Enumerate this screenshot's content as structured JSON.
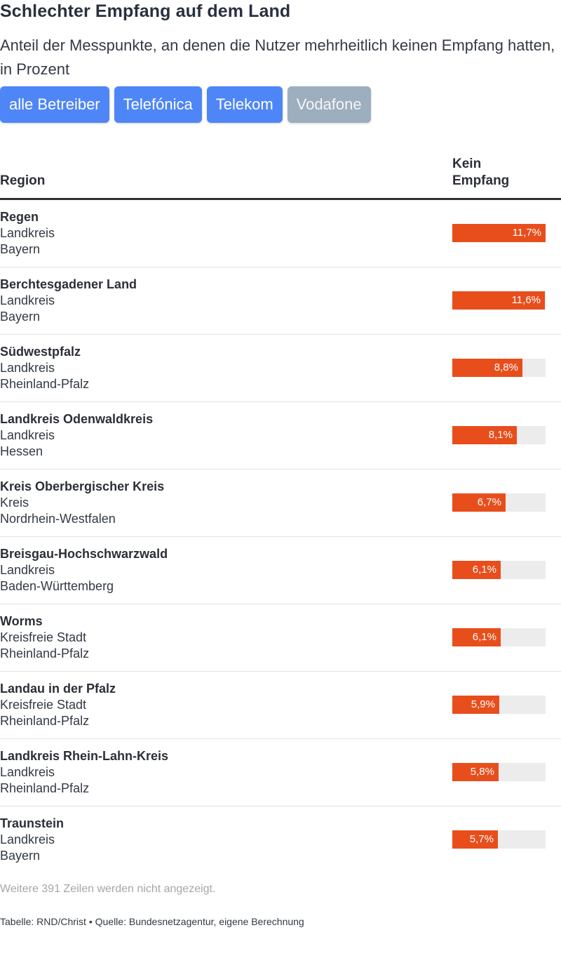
{
  "title": "Schlechter Empfang auf dem Land",
  "subtitle": "Anteil der Messpunkte, an denen die Nutzer mehrheitlich keinen Empfang hatten, in Prozent",
  "buttons": [
    {
      "label": "alle Betreiber",
      "active": true
    },
    {
      "label": "Telefónica",
      "active": true
    },
    {
      "label": "Telekom",
      "active": true
    },
    {
      "label": "Vodafone",
      "active": false
    }
  ],
  "colors": {
    "bar": "#e84e1c",
    "track": "#ececec",
    "button": "#4f86f7",
    "button_inactive": "#9daebe"
  },
  "table": {
    "col_region": "Region",
    "col_value_line1": "Kein",
    "col_value_line2": "Empfang"
  },
  "chart_data": {
    "type": "bar",
    "xlim": [
      0,
      11.7
    ],
    "rows": [
      {
        "name": "Regen",
        "type": "Landkreis",
        "state": "Bayern",
        "value": 11.7,
        "label": "11,7%"
      },
      {
        "name": "Berchtesgadener Land",
        "type": "Landkreis",
        "state": "Bayern",
        "value": 11.6,
        "label": "11,6%"
      },
      {
        "name": "Südwestpfalz",
        "type": "Landkreis",
        "state": "Rheinland-Pfalz",
        "value": 8.8,
        "label": "8,8%"
      },
      {
        "name": "Landkreis Odenwaldkreis",
        "type": "Landkreis",
        "state": "Hessen",
        "value": 8.1,
        "label": "8,1%"
      },
      {
        "name": "Kreis Oberbergischer Kreis",
        "type": "Kreis",
        "state": "Nordrhein-Westfalen",
        "value": 6.7,
        "label": "6,7%"
      },
      {
        "name": "Breisgau-Hochschwarzwald",
        "type": "Landkreis",
        "state": "Baden-Württemberg",
        "value": 6.1,
        "label": "6,1%"
      },
      {
        "name": "Worms",
        "type": "Kreisfreie Stadt",
        "state": "Rheinland-Pfalz",
        "value": 6.1,
        "label": "6,1%"
      },
      {
        "name": "Landau in der Pfalz",
        "type": "Kreisfreie Stadt",
        "state": "Rheinland-Pfalz",
        "value": 5.9,
        "label": "5,9%"
      },
      {
        "name": "Landkreis Rhein-Lahn-Kreis",
        "type": "Landkreis",
        "state": "Rheinland-Pfalz",
        "value": 5.8,
        "label": "5,8%"
      },
      {
        "name": "Traunstein",
        "type": "Landkreis",
        "state": "Bayern",
        "value": 5.7,
        "label": "5,7%"
      }
    ]
  },
  "note": "Weitere 391 Zeilen werden nicht angezeigt.",
  "footer": "Tabelle: RND/Christ • Quelle: Bundesnetzagentur, eigene Berechnung"
}
